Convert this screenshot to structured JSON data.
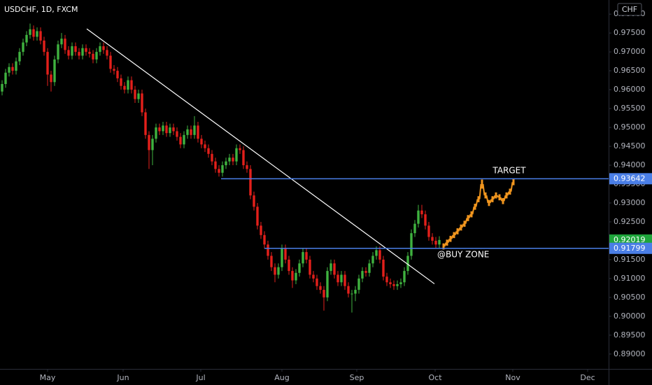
{
  "chart_data": {
    "type": "candlestick",
    "title": "USDCHF, 1D, FXCM",
    "currency": "CHF",
    "up_color": "#3fb23f",
    "down_color": "#e3201b",
    "open": [
      0.9595,
      0.9615,
      0.9645,
      0.966,
      0.965,
      0.9675,
      0.97,
      0.9725,
      0.9745,
      0.976,
      0.974,
      0.9755,
      0.973,
      0.97,
      0.964,
      0.962,
      0.968,
      0.972,
      0.9735,
      0.9705,
      0.969,
      0.9715,
      0.97,
      0.969,
      0.971,
      0.97,
      0.9695,
      0.968,
      0.97,
      0.9715,
      0.9705,
      0.969,
      0.9655,
      0.965,
      0.963,
      0.961,
      0.96,
      0.9625,
      0.96,
      0.9575,
      0.959,
      0.954,
      0.948,
      0.944,
      0.947,
      0.95,
      0.949,
      0.9505,
      0.9485,
      0.95,
      0.949,
      0.9475,
      0.9455,
      0.948,
      0.9495,
      0.948,
      0.9505,
      0.947,
      0.9455,
      0.9445,
      0.943,
      0.941,
      0.939,
      0.938,
      0.94,
      0.941,
      0.942,
      0.941,
      0.9445,
      0.944,
      0.94,
      0.939,
      0.932,
      0.929,
      0.924,
      0.9215,
      0.919,
      0.916,
      0.913,
      0.911,
      0.913,
      0.918,
      0.915,
      0.912,
      0.9095,
      0.9115,
      0.914,
      0.917,
      0.915,
      0.911,
      0.91,
      0.908,
      0.907,
      0.905,
      0.912,
      0.914,
      0.911,
      0.909,
      0.911,
      0.908,
      0.906,
      0.906,
      0.907,
      0.91,
      0.912,
      0.9115,
      0.914,
      0.916,
      0.9175,
      0.915,
      0.9105,
      0.909,
      0.9085,
      0.908,
      0.9085,
      0.909,
      0.912,
      0.916,
      0.922,
      0.9245,
      0.928,
      0.927,
      0.924,
      0.921,
      0.92,
      0.919
    ],
    "high": [
      0.9625,
      0.9655,
      0.967,
      0.967,
      0.9685,
      0.971,
      0.9735,
      0.9755,
      0.9775,
      0.977,
      0.9765,
      0.9765,
      0.974,
      0.971,
      0.965,
      0.969,
      0.973,
      0.975,
      0.9745,
      0.9715,
      0.9725,
      0.9725,
      0.971,
      0.972,
      0.972,
      0.971,
      0.9705,
      0.971,
      0.9725,
      0.9725,
      0.9715,
      0.97,
      0.9665,
      0.966,
      0.964,
      0.962,
      0.9635,
      0.9635,
      0.961,
      0.96,
      0.96,
      0.955,
      0.949,
      0.948,
      0.951,
      0.951,
      0.9515,
      0.9515,
      0.951,
      0.951,
      0.95,
      0.9485,
      0.949,
      0.9505,
      0.9505,
      0.953,
      0.9515,
      0.948,
      0.9465,
      0.9455,
      0.944,
      0.942,
      0.94,
      0.941,
      0.942,
      0.943,
      0.943,
      0.9455,
      0.9455,
      0.945,
      0.941,
      0.94,
      0.933,
      0.93,
      0.925,
      0.9225,
      0.92,
      0.917,
      0.914,
      0.914,
      0.919,
      0.919,
      0.916,
      0.913,
      0.9125,
      0.915,
      0.918,
      0.918,
      0.916,
      0.912,
      0.911,
      0.909,
      0.908,
      0.913,
      0.915,
      0.915,
      0.912,
      0.912,
      0.912,
      0.909,
      0.907,
      0.908,
      0.911,
      0.913,
      0.913,
      0.915,
      0.917,
      0.9185,
      0.9185,
      0.916,
      0.9115,
      0.91,
      0.9095,
      0.9095,
      0.91,
      0.913,
      0.917,
      0.923,
      0.9255,
      0.9295,
      0.9295,
      0.928,
      0.925,
      0.922,
      0.921,
      0.9212
    ],
    "low": [
      0.9585,
      0.9605,
      0.9635,
      0.964,
      0.964,
      0.9665,
      0.969,
      0.9715,
      0.9735,
      0.973,
      0.973,
      0.972,
      0.969,
      0.961,
      0.9595,
      0.961,
      0.967,
      0.971,
      0.9695,
      0.968,
      0.968,
      0.969,
      0.968,
      0.968,
      0.969,
      0.9685,
      0.967,
      0.967,
      0.969,
      0.9695,
      0.968,
      0.9645,
      0.964,
      0.962,
      0.96,
      0.959,
      0.959,
      0.959,
      0.9565,
      0.9565,
      0.953,
      0.947,
      0.939,
      0.94,
      0.946,
      0.948,
      0.948,
      0.9475,
      0.9475,
      0.948,
      0.9465,
      0.9445,
      0.9445,
      0.947,
      0.947,
      0.947,
      0.946,
      0.9445,
      0.9435,
      0.942,
      0.94,
      0.938,
      0.937,
      0.937,
      0.939,
      0.94,
      0.94,
      0.94,
      0.943,
      0.939,
      0.938,
      0.931,
      0.928,
      0.923,
      0.9205,
      0.918,
      0.915,
      0.912,
      0.909,
      0.91,
      0.912,
      0.914,
      0.911,
      0.9075,
      0.9085,
      0.9105,
      0.913,
      0.914,
      0.91,
      0.909,
      0.907,
      0.906,
      0.9015,
      0.904,
      0.911,
      0.91,
      0.908,
      0.908,
      0.907,
      0.905,
      0.901,
      0.904,
      0.906,
      0.909,
      0.9105,
      0.9105,
      0.913,
      0.915,
      0.914,
      0.9095,
      0.908,
      0.9075,
      0.907,
      0.907,
      0.9075,
      0.908,
      0.911,
      0.915,
      0.921,
      0.9235,
      0.926,
      0.923,
      0.92,
      0.919,
      0.918,
      0.918
    ],
    "close": [
      0.9615,
      0.9645,
      0.966,
      0.965,
      0.9675,
      0.97,
      0.9725,
      0.9745,
      0.976,
      0.974,
      0.9755,
      0.973,
      0.97,
      0.964,
      0.962,
      0.968,
      0.972,
      0.9735,
      0.9705,
      0.969,
      0.9715,
      0.97,
      0.969,
      0.971,
      0.97,
      0.9695,
      0.968,
      0.97,
      0.9715,
      0.9705,
      0.969,
      0.9655,
      0.965,
      0.963,
      0.961,
      0.96,
      0.9625,
      0.96,
      0.9575,
      0.959,
      0.954,
      0.948,
      0.944,
      0.947,
      0.95,
      0.949,
      0.9505,
      0.9485,
      0.95,
      0.949,
      0.9475,
      0.9455,
      0.948,
      0.9495,
      0.948,
      0.9505,
      0.947,
      0.9455,
      0.9445,
      0.943,
      0.941,
      0.939,
      0.938,
      0.94,
      0.941,
      0.942,
      0.941,
      0.9445,
      0.944,
      0.94,
      0.939,
      0.932,
      0.929,
      0.924,
      0.9215,
      0.919,
      0.916,
      0.913,
      0.911,
      0.913,
      0.918,
      0.915,
      0.912,
      0.9095,
      0.9115,
      0.914,
      0.917,
      0.915,
      0.911,
      0.91,
      0.908,
      0.907,
      0.905,
      0.912,
      0.914,
      0.911,
      0.909,
      0.911,
      0.908,
      0.906,
      0.906,
      0.907,
      0.91,
      0.912,
      0.9115,
      0.914,
      0.916,
      0.9175,
      0.915,
      0.9105,
      0.909,
      0.9085,
      0.908,
      0.9085,
      0.909,
      0.912,
      0.916,
      0.922,
      0.9245,
      0.928,
      0.927,
      0.924,
      0.921,
      0.92,
      0.919,
      0.9202
    ],
    "xlim": [
      -0.6,
      173.4
    ],
    "xticks": [
      {
        "value": 13,
        "label": "May"
      },
      {
        "value": 34.6,
        "label": "Jun"
      },
      {
        "value": 56.8,
        "label": "Jul"
      },
      {
        "value": 80,
        "label": "Aug"
      },
      {
        "value": 101.4,
        "label": "Sep"
      },
      {
        "value": 123.8,
        "label": "Oct"
      },
      {
        "value": 146,
        "label": "Nov"
      },
      {
        "value": 167.4,
        "label": "Dec"
      }
    ],
    "ylim": [
      0.88607,
      0.98374
    ],
    "yticks": [
      {
        "value": 0.98,
        "label": "0.98000"
      },
      {
        "value": 0.975,
        "label": "0.97500"
      },
      {
        "value": 0.97,
        "label": "0.97000"
      },
      {
        "value": 0.965,
        "label": "0.96500"
      },
      {
        "value": 0.96,
        "label": "0.96000"
      },
      {
        "value": 0.955,
        "label": "0.95500"
      },
      {
        "value": 0.95,
        "label": "0.95000"
      },
      {
        "value": 0.945,
        "label": "0.94500"
      },
      {
        "value": 0.94,
        "label": "0.94000"
      },
      {
        "value": 0.935,
        "label": "0.93500"
      },
      {
        "value": 0.93,
        "label": "0.93000"
      },
      {
        "value": 0.925,
        "label": "0.92500"
      },
      {
        "value": 0.92,
        "label": "0.92000"
      },
      {
        "value": 0.915,
        "label": "0.91500"
      },
      {
        "value": 0.91,
        "label": "0.91000"
      },
      {
        "value": 0.905,
        "label": "0.90500"
      },
      {
        "value": 0.9,
        "label": "0.90000"
      },
      {
        "value": 0.895,
        "label": "0.89500"
      },
      {
        "value": 0.89,
        "label": "0.89000"
      }
    ],
    "trendline": {
      "x": [
        24.2,
        123.6
      ],
      "y": [
        0.9761,
        0.9086
      ],
      "color": "#ffffff"
    },
    "levels": [
      {
        "value": 0.93642,
        "label": "0.93642",
        "color": "#4a7ee6"
      },
      {
        "value": 0.91799,
        "label": "0.91799",
        "color": "#4a7ee6"
      }
    ],
    "last_price": {
      "value": 0.92019,
      "label": "0.92019",
      "color": "#1ea53b"
    },
    "projection": {
      "color": "#f0951e",
      "high": [
        0.9193,
        0.9203,
        0.9213,
        0.9223,
        0.9233,
        0.9243,
        0.9253,
        0.9268,
        0.9278,
        0.9298,
        0.9318,
        0.9362,
        0.9328,
        0.9308,
        0.9318,
        0.9328,
        0.9323,
        0.9313,
        0.9328,
        0.9338,
        0.9363
      ],
      "low": [
        0.9177,
        0.9187,
        0.9197,
        0.9207,
        0.9217,
        0.9227,
        0.9237,
        0.9252,
        0.9262,
        0.9282,
        0.9302,
        0.9338,
        0.9312,
        0.9292,
        0.9302,
        0.9312,
        0.9307,
        0.9297,
        0.9312,
        0.9322,
        0.9347
      ]
    },
    "annotations": [
      "TARGET",
      "@BUY ZONE"
    ]
  }
}
